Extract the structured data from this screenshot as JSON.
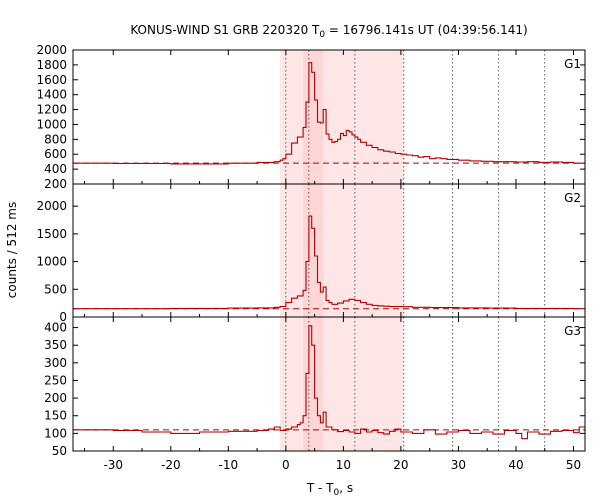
{
  "chart_data": {
    "type": "line",
    "title": "KONUS-WIND S1 GRB 220320 T",
    "title_sub": "0",
    "title_rest": " = 16796.141s UT (04:39:56.141)",
    "xlabel": "T - T",
    "xlabel_sub": "0",
    "xlabel_rest": ", s",
    "ylabel": "counts / 512 ms",
    "xlim": [
      -37,
      52
    ],
    "xticks": [
      -30,
      -20,
      -10,
      0,
      10,
      20,
      30,
      40,
      50
    ],
    "xtick_labels": [
      "-30",
      "-20",
      "-10",
      "0",
      "10",
      "20",
      "30",
      "40",
      "50"
    ],
    "shaded_intervals": [
      {
        "from": -1,
        "to": 20.5,
        "strength": "light"
      },
      {
        "from": 3.0,
        "to": 6.5,
        "strength": "medium"
      }
    ],
    "vertical_lines_dotted": [
      0,
      4,
      12,
      20.5,
      29,
      37,
      45
    ],
    "line_color": "#b00000",
    "shade_color": "#ffc8c8",
    "panels": [
      {
        "name": "G1",
        "ylim": [
          200,
          2000
        ],
        "yticks": [
          200,
          400,
          600,
          800,
          1000,
          1200,
          1400,
          1600,
          1800,
          2000
        ],
        "ytick_labels": [
          "200",
          "400",
          "600",
          "800",
          "1000",
          "1200",
          "1400",
          "1600",
          "1800",
          "2000"
        ],
        "background": 480,
        "x": [
          -37,
          -30,
          -20,
          -10,
          -5,
          -2,
          -1,
          -0.5,
          0,
          1,
          2,
          3,
          3.5,
          4,
          4.5,
          5,
          5.5,
          6,
          6.5,
          7,
          7.5,
          8,
          8.5,
          9,
          9.5,
          10,
          10.5,
          11,
          11.5,
          12,
          12.5,
          13,
          14,
          15,
          16,
          17,
          18,
          19,
          20,
          21,
          22,
          23,
          24,
          25,
          26,
          27,
          28,
          30,
          32,
          34,
          36,
          38,
          40,
          42,
          44,
          46,
          48,
          50,
          52
        ],
        "y": [
          480,
          475,
          470,
          480,
          490,
          500,
          520,
          540,
          600,
          750,
          830,
          960,
          1300,
          1830,
          1700,
          1330,
          1030,
          1020,
          1200,
          870,
          800,
          760,
          770,
          800,
          880,
          850,
          920,
          900,
          860,
          830,
          800,
          760,
          720,
          690,
          660,
          640,
          630,
          610,
          600,
          590,
          580,
          560,
          570,
          540,
          550,
          540,
          530,
          520,
          510,
          505,
          500,
          500,
          495,
          500,
          490,
          495,
          490,
          480,
          480
        ]
      },
      {
        "name": "G2",
        "ylim": [
          0,
          2400
        ],
        "yticks": [
          0,
          500,
          1000,
          1500,
          2000
        ],
        "ytick_labels": [
          "0",
          "500",
          "1000",
          "1500",
          "2000"
        ],
        "background": 150,
        "x": [
          -37,
          -30,
          -20,
          -10,
          -5,
          -2,
          -1,
          0,
          1,
          2,
          3,
          3.5,
          4,
          4.5,
          5,
          5.5,
          6,
          6.5,
          7,
          7.5,
          8,
          9,
          10,
          11,
          12,
          13,
          14,
          15,
          16,
          17,
          18,
          20,
          22,
          25,
          30,
          35,
          40,
          45,
          50,
          52
        ],
        "y": [
          150,
          150,
          155,
          160,
          165,
          175,
          190,
          260,
          340,
          380,
          480,
          1000,
          1820,
          1600,
          1100,
          620,
          450,
          540,
          300,
          260,
          230,
          250,
          290,
          320,
          300,
          260,
          230,
          210,
          200,
          195,
          190,
          185,
          175,
          170,
          165,
          160,
          155,
          155,
          150,
          150
        ]
      },
      {
        "name": "G3",
        "ylim": [
          50,
          430
        ],
        "yticks": [
          50,
          100,
          150,
          200,
          250,
          300,
          350,
          400
        ],
        "ytick_labels": [
          "50",
          "100",
          "150",
          "200",
          "250",
          "300",
          "350",
          "400"
        ],
        "background": 110,
        "x": [
          -37,
          -30,
          -25,
          -20,
          -15,
          -10,
          -5,
          -3,
          -2,
          -1,
          0,
          1,
          2,
          2.5,
          3,
          3.5,
          4,
          4.5,
          5,
          5.5,
          6,
          6.5,
          7,
          8,
          9,
          10,
          11,
          12,
          13,
          14,
          15,
          16,
          17,
          18,
          19,
          20,
          22,
          24,
          26,
          28,
          30,
          32,
          34,
          36,
          38,
          40,
          41,
          42,
          44,
          46,
          48,
          50,
          51,
          52
        ],
        "y": [
          110,
          108,
          104,
          100,
          104,
          106,
          108,
          112,
          118,
          108,
          112,
          118,
          125,
          130,
          150,
          270,
          405,
          350,
          200,
          150,
          130,
          160,
          118,
          110,
          105,
          108,
          104,
          100,
          112,
          104,
          108,
          102,
          98,
          106,
          112,
          104,
          100,
          110,
          98,
          104,
          108,
          100,
          104,
          98,
          108,
          100,
          85,
          104,
          98,
          106,
          108,
          102,
          118,
          108
        ]
      }
    ]
  }
}
